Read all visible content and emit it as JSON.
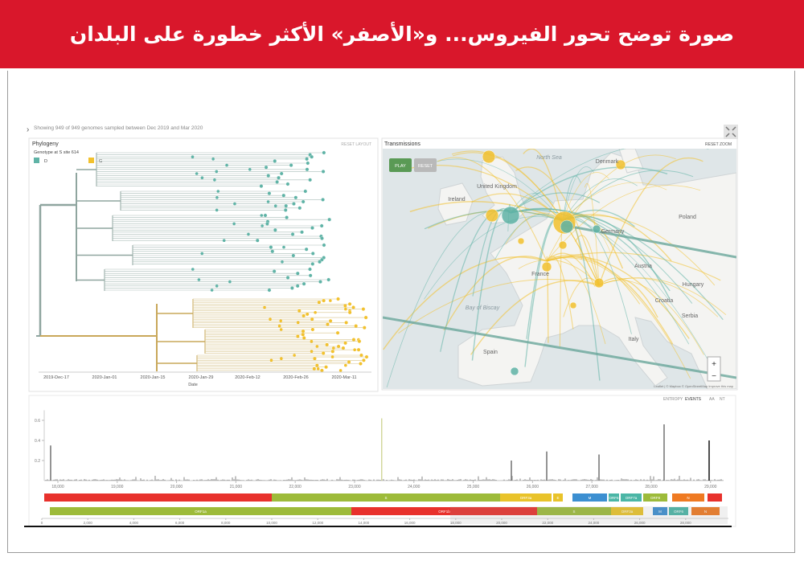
{
  "header": {
    "title": "صورة توضح تحور الفيروس... و«الأصفر» الأكثر خطورة على البلدان"
  },
  "app": {
    "status": "Showing 949 of 949 genomes sampled between Dec 2019 and Mar 2020",
    "phylogeny": {
      "title": "Phylogeny",
      "reset": "RESET LAYOUT",
      "legend_title": "Genotype at S site 614",
      "legend": [
        {
          "name": "D",
          "color": "#5fb3a6"
        },
        {
          "name": "G",
          "color": "#f2c12e"
        }
      ],
      "dates": [
        "2019-Dec-17",
        "2020-Jan-01",
        "2020-Jan-15",
        "2020-Jan-29",
        "2020-Feb-12",
        "2020-Feb-26",
        "2020-Mar-11"
      ],
      "axis_label": "Date"
    },
    "transmissions": {
      "title": "Transmissions",
      "reset_zoom": "RESET ZOOM",
      "play": "PLAY",
      "reset": "RESET",
      "places": [
        "North Sea",
        "Denmark",
        "United Kingdom",
        "Ireland",
        "Germany",
        "Poland",
        "France",
        "Bay of Biscay",
        "Spain",
        "Italy",
        "Austria",
        "Hungary",
        "Croatia",
        "Serbia"
      ],
      "zoom_in": "+",
      "zoom_out": "−",
      "attribution": "Leaflet | © Mapbox © OpenStreetMap Improve this map"
    },
    "entropy": {
      "tabs": [
        "ENTROPY",
        "EVENTS",
        "AA",
        "NT"
      ],
      "type": "bar",
      "color": "#7a7a7a",
      "x": [
        17878,
        23461,
        25643,
        26239,
        27120,
        28217,
        28976
      ],
      "values": [
        0.35,
        0.62,
        0.2,
        0.29,
        0.26,
        0.56,
        0.4
      ],
      "xlim": [
        17770,
        29220
      ],
      "ylim": [
        0,
        0.7
      ],
      "yticks": [
        0.2,
        0.4,
        0.6
      ],
      "xticks": [
        {
          "value": 18000,
          "label": "18,000"
        },
        {
          "value": 19000,
          "label": "19,000"
        },
        {
          "value": 20000,
          "label": "20,000"
        },
        {
          "value": 21000,
          "label": "21,000"
        },
        {
          "value": 22000,
          "label": "22,000"
        },
        {
          "value": 23000,
          "label": "23,000"
        },
        {
          "value": 24000,
          "label": "24,000"
        },
        {
          "value": 25000,
          "label": "25,000"
        },
        {
          "value": 26000,
          "label": "26,000"
        },
        {
          "value": 27000,
          "label": "27,000"
        },
        {
          "value": 28000,
          "label": "28,000"
        },
        {
          "value": 29000,
          "label": "29,000"
        }
      ]
    },
    "genes": {
      "row1": [
        "S",
        "ORF3a",
        "E",
        "M",
        "ORF6",
        "ORF7a",
        "ORF8",
        "N"
      ],
      "row2": [
        "ORF1a",
        "ORF1b",
        "S",
        "ORF3a",
        "M",
        "ORF6",
        "N"
      ]
    },
    "genome_axis": {
      "xlim": [
        0,
        29860
      ],
      "xticks": [
        0,
        {
          "value": 2000,
          "label": "2,000"
        },
        {
          "value": 4000,
          "label": "4,000"
        },
        {
          "value": 6000,
          "label": "6,000"
        },
        {
          "value": 8000,
          "label": "8,000"
        },
        {
          "value": 10000,
          "label": "10,000"
        },
        {
          "value": 12000,
          "label": "12,000"
        },
        {
          "value": 14000,
          "label": "14,000"
        },
        {
          "value": 16000,
          "label": "16,000"
        },
        {
          "value": 18000,
          "label": "18,000"
        },
        {
          "value": 20000,
          "label": "20,000"
        },
        {
          "value": 22000,
          "label": "22,000"
        },
        {
          "value": 24000,
          "label": "24,000"
        },
        {
          "value": 26000,
          "label": "26,000"
        },
        {
          "value": 28000,
          "label": "28,000"
        }
      ]
    }
  }
}
